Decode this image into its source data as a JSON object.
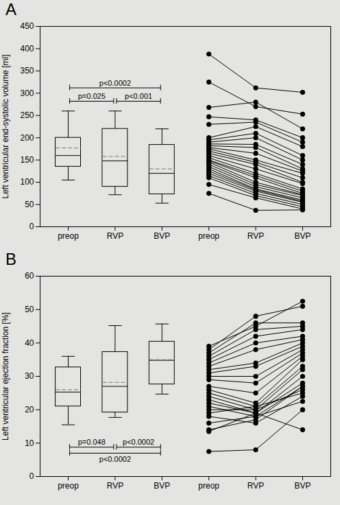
{
  "chart_data": [
    {
      "type": "box",
      "title": "A",
      "y_label": "Left ventricular end-systolic volume [ml]",
      "ylim": [
        0,
        450
      ],
      "yticks": [
        0,
        50,
        100,
        150,
        200,
        250,
        300,
        350,
        400,
        450
      ],
      "grid": false,
      "color": "#000000",
      "marker": "circle",
      "box_categories": [
        "preop",
        "RVP",
        "BVP"
      ],
      "boxes": [
        {
          "min": 105,
          "q1": 135,
          "median": 160,
          "mean": 177,
          "q3": 200,
          "max": 260
        },
        {
          "min": 72,
          "q1": 90,
          "median": 148,
          "mean": 158,
          "q3": 220,
          "max": 260
        },
        {
          "min": 53,
          "q1": 73,
          "median": 120,
          "mean": 130,
          "q3": 184,
          "max": 220
        }
      ],
      "paired_categories": [
        "preop",
        "RVP",
        "BVP"
      ],
      "subjects": [
        [
          388,
          312,
          302
        ],
        [
          325,
          270,
          253
        ],
        [
          268,
          280,
          220
        ],
        [
          247,
          240,
          200
        ],
        [
          230,
          235,
          190
        ],
        [
          200,
          225,
          180
        ],
        [
          195,
          210,
          160
        ],
        [
          190,
          200,
          150
        ],
        [
          186,
          185,
          140
        ],
        [
          182,
          178,
          130
        ],
        [
          178,
          165,
          125
        ],
        [
          175,
          150,
          120
        ],
        [
          170,
          145,
          110
        ],
        [
          165,
          140,
          100
        ],
        [
          160,
          130,
          97
        ],
        [
          155,
          120,
          85
        ],
        [
          150,
          115,
          80
        ],
        [
          148,
          110,
          75
        ],
        [
          145,
          100,
          72
        ],
        [
          140,
          95,
          70
        ],
        [
          135,
          90,
          65
        ],
        [
          130,
          85,
          60
        ],
        [
          125,
          83,
          57
        ],
        [
          120,
          80,
          55
        ],
        [
          115,
          75,
          50
        ],
        [
          110,
          70,
          45
        ],
        [
          95,
          65,
          40
        ],
        [
          75,
          37,
          38
        ]
      ],
      "annotations": [
        {
          "text": "p<0.0002",
          "from": "preop",
          "to": "BVP",
          "y": 312
        },
        {
          "text": "p=0.025",
          "from": "preop",
          "to": "RVP",
          "y": 282
        },
        {
          "text": "p<0.001",
          "from": "RVP",
          "to": "BVP",
          "y": 282
        }
      ]
    },
    {
      "type": "box",
      "title": "B",
      "y_label": "Left ventricular ejection fraction [%]",
      "ylim": [
        0,
        60
      ],
      "yticks": [
        0,
        10,
        20,
        30,
        40,
        50,
        60
      ],
      "grid": false,
      "color": "#000000",
      "marker": "circle",
      "box_categories": [
        "preop",
        "RVP",
        "BVP"
      ],
      "boxes": [
        {
          "min": 15.5,
          "q1": 21,
          "median": 25.3,
          "mean": 26,
          "q3": 32.7,
          "max": 36
        },
        {
          "min": 17.7,
          "q1": 19.2,
          "median": 27,
          "mean": 28.2,
          "q3": 37.3,
          "max": 45.2
        },
        {
          "min": 24.7,
          "q1": 27.6,
          "median": 34.8,
          "mean": 35,
          "q3": 40.4,
          "max": 45.7
        }
      ],
      "paired_categories": [
        "preop",
        "RVP",
        "BVP"
      ],
      "subjects": [
        [
          39,
          45,
          52.5
        ],
        [
          38,
          48,
          51
        ],
        [
          37,
          46,
          46
        ],
        [
          36,
          44,
          45
        ],
        [
          35,
          42,
          44
        ],
        [
          34,
          40,
          42
        ],
        [
          33,
          38,
          41
        ],
        [
          32,
          34,
          40
        ],
        [
          31,
          33,
          39
        ],
        [
          30,
          30,
          38
        ],
        [
          29,
          28,
          37
        ],
        [
          27,
          25,
          36
        ],
        [
          26,
          22,
          35
        ],
        [
          25,
          21,
          33
        ],
        [
          24,
          20,
          32
        ],
        [
          23,
          19,
          30
        ],
        [
          22,
          19,
          28
        ],
        [
          21,
          18,
          27
        ],
        [
          20,
          20,
          26
        ],
        [
          19,
          21,
          25
        ],
        [
          18,
          16,
          24
        ],
        [
          16,
          18,
          22.5
        ],
        [
          14,
          17,
          27
        ],
        [
          13.5,
          19,
          14
        ],
        [
          7.5,
          8,
          20
        ]
      ],
      "annotations": [
        {
          "text": "p=0.048",
          "from": "preop",
          "to": "RVP",
          "y": 8.8
        },
        {
          "text": "p<0.0002",
          "from": "RVP",
          "to": "BVP",
          "y": 8.8
        },
        {
          "text": "p<0.0002",
          "from": "preop",
          "to": "BVP",
          "y": 7
        }
      ]
    }
  ]
}
